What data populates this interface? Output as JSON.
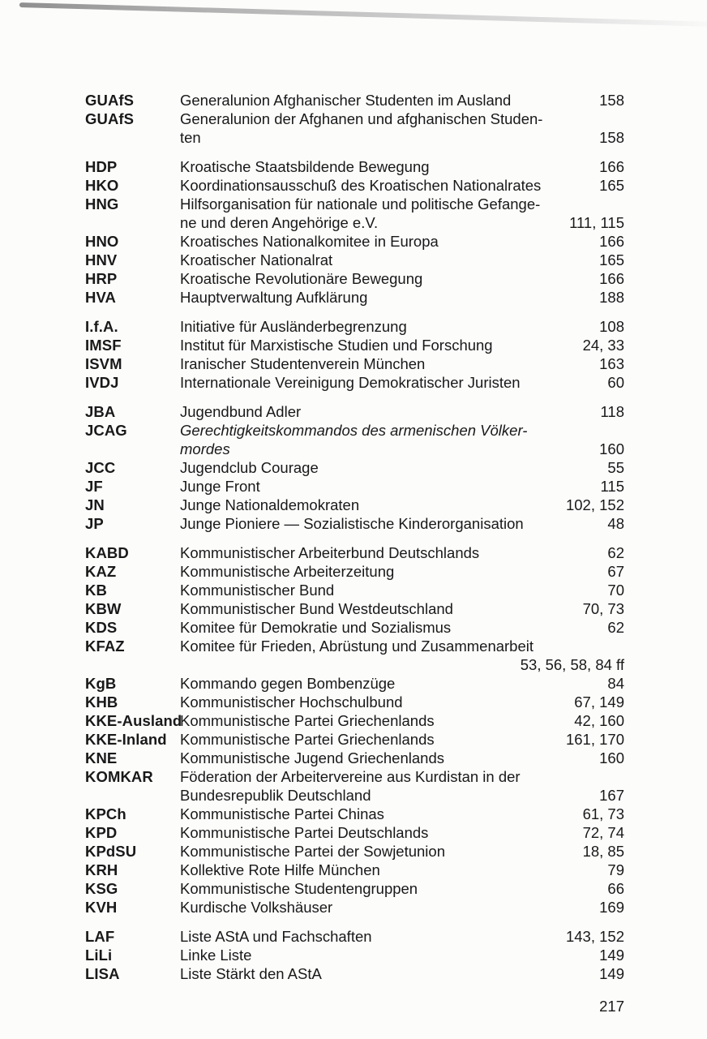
{
  "colors": {
    "paper": "#fcfcfb",
    "ink": "#191919",
    "scan_artifact_gray": "#8f8f8f"
  },
  "page": {
    "footer_page_number": "217"
  },
  "index": {
    "groups": [
      {
        "entries": [
          {
            "abbr": "GUAfS",
            "lines": [
              "Generalunion Afghanischer Studenten im Ausland"
            ],
            "pages": "158",
            "italic": false
          },
          {
            "abbr": "GUAfS",
            "lines": [
              "Generalunion der Afghanen und afghanischen Studen-",
              "ten"
            ],
            "pages": "158",
            "italic": false
          }
        ]
      },
      {
        "entries": [
          {
            "abbr": "HDP",
            "lines": [
              "Kroatische Staatsbildende Bewegung"
            ],
            "pages": "166",
            "italic": false
          },
          {
            "abbr": "HKO",
            "lines": [
              "Koordinationsausschuß des Kroatischen Nationalrates"
            ],
            "pages": "165",
            "italic": false
          },
          {
            "abbr": "HNG",
            "lines": [
              "Hilfsorganisation für nationale und politische Gefange-",
              "ne und deren Angehörige e.V."
            ],
            "pages": "111, 115",
            "italic": false
          },
          {
            "abbr": "HNO",
            "lines": [
              "Kroatisches Nationalkomitee in Europa"
            ],
            "pages": "166",
            "italic": false
          },
          {
            "abbr": "HNV",
            "lines": [
              "Kroatischer Nationalrat"
            ],
            "pages": "165",
            "italic": false
          },
          {
            "abbr": "HRP",
            "lines": [
              "Kroatische Revolutionäre Bewegung"
            ],
            "pages": "166",
            "italic": false
          },
          {
            "abbr": "HVA",
            "lines": [
              "Hauptverwaltung Aufklärung"
            ],
            "pages": "188",
            "italic": false
          }
        ]
      },
      {
        "entries": [
          {
            "abbr": "I.f.A.",
            "lines": [
              "Initiative für Ausländerbegrenzung"
            ],
            "pages": "108",
            "italic": false
          },
          {
            "abbr": "IMSF",
            "lines": [
              "Institut für Marxistische Studien und Forschung"
            ],
            "pages": "24, 33",
            "italic": false
          },
          {
            "abbr": "ISVM",
            "lines": [
              "Iranischer Studentenverein München"
            ],
            "pages": "163",
            "italic": false
          },
          {
            "abbr": "IVDJ",
            "lines": [
              "Internationale Vereinigung Demokratischer Juristen"
            ],
            "pages": "60",
            "italic": false
          }
        ]
      },
      {
        "entries": [
          {
            "abbr": "JBA",
            "lines": [
              "Jugendbund Adler"
            ],
            "pages": "118",
            "italic": false
          },
          {
            "abbr": "JCAG",
            "lines": [
              "Gerechtigkeitskommandos des armenischen Völker-",
              "mordes"
            ],
            "pages": "160",
            "italic": true
          },
          {
            "abbr": "JCC",
            "lines": [
              "Jugendclub Courage"
            ],
            "pages": "55",
            "italic": false
          },
          {
            "abbr": "JF",
            "lines": [
              "Junge Front"
            ],
            "pages": "115",
            "italic": false
          },
          {
            "abbr": "JN",
            "lines": [
              "Junge Nationaldemokraten"
            ],
            "pages": "102, 152",
            "italic": false
          },
          {
            "abbr": "JP",
            "lines": [
              "Junge Pioniere — Sozialistische Kinderorganisation"
            ],
            "pages": "48",
            "italic": false
          }
        ]
      },
      {
        "entries": [
          {
            "abbr": "KABD",
            "lines": [
              "Kommunistischer Arbeiterbund Deutschlands"
            ],
            "pages": "62",
            "italic": false
          },
          {
            "abbr": "KAZ",
            "lines": [
              "Kommunistische Arbeiterzeitung"
            ],
            "pages": "67",
            "italic": false
          },
          {
            "abbr": "KB",
            "lines": [
              "Kommunistischer Bund"
            ],
            "pages": "70",
            "italic": false
          },
          {
            "abbr": "KBW",
            "lines": [
              "Kommunistischer Bund Westdeutschland"
            ],
            "pages": "70, 73",
            "italic": false
          },
          {
            "abbr": "KDS",
            "lines": [
              "Komitee für Demokratie und Sozialismus"
            ],
            "pages": "62",
            "italic": false
          },
          {
            "abbr": "KFAZ",
            "lines": [
              "Komitee für Frieden, Abrüstung und Zusammenarbeit",
              ""
            ],
            "pages": "53, 56, 58, 84 ff",
            "italic": false
          },
          {
            "abbr": "KgB",
            "lines": [
              "Kommando gegen Bombenzüge"
            ],
            "pages": "84",
            "italic": false
          },
          {
            "abbr": "KHB",
            "lines": [
              "Kommunistischer Hochschulbund"
            ],
            "pages": "67, 149",
            "italic": false
          },
          {
            "abbr": "KKE-Ausland",
            "lines": [
              "Kommunistische Partei Griechenlands"
            ],
            "pages": "42, 160",
            "italic": false
          },
          {
            "abbr": "KKE-Inland",
            "lines": [
              "Kommunistische Partei Griechenlands"
            ],
            "pages": "161, 170",
            "italic": false
          },
          {
            "abbr": "KNE",
            "lines": [
              "Kommunistische Jugend Griechenlands"
            ],
            "pages": "160",
            "italic": false
          },
          {
            "abbr": "KOMKAR",
            "lines": [
              "Föderation der Arbeitervereine aus Kurdistan in der",
              "Bundesrepublik Deutschland"
            ],
            "pages": "167",
            "italic": false
          },
          {
            "abbr": "KPCh",
            "lines": [
              "Kommunistische Partei Chinas"
            ],
            "pages": "61, 73",
            "italic": false
          },
          {
            "abbr": "KPD",
            "lines": [
              "Kommunistische Partei Deutschlands"
            ],
            "pages": "72, 74",
            "italic": false
          },
          {
            "abbr": "KPdSU",
            "lines": [
              "Kommunistische Partei der Sowjetunion"
            ],
            "pages": "18, 85",
            "italic": false
          },
          {
            "abbr": "KRH",
            "lines": [
              "Kollektive Rote Hilfe München"
            ],
            "pages": "79",
            "italic": false
          },
          {
            "abbr": "KSG",
            "lines": [
              "Kommunistische Studentengruppen"
            ],
            "pages": "66",
            "italic": false
          },
          {
            "abbr": "KVH",
            "lines": [
              "Kurdische Volkshäuser"
            ],
            "pages": "169",
            "italic": false
          }
        ]
      },
      {
        "entries": [
          {
            "abbr": "LAF",
            "lines": [
              "Liste AStA und Fachschaften"
            ],
            "pages": "143, 152",
            "italic": false
          },
          {
            "abbr": "LiLi",
            "lines": [
              "Linke Liste"
            ],
            "pages": "149",
            "italic": false
          },
          {
            "abbr": "LISA",
            "lines": [
              "Liste Stärkt den AStA"
            ],
            "pages": "149",
            "italic": false
          }
        ]
      }
    ]
  }
}
